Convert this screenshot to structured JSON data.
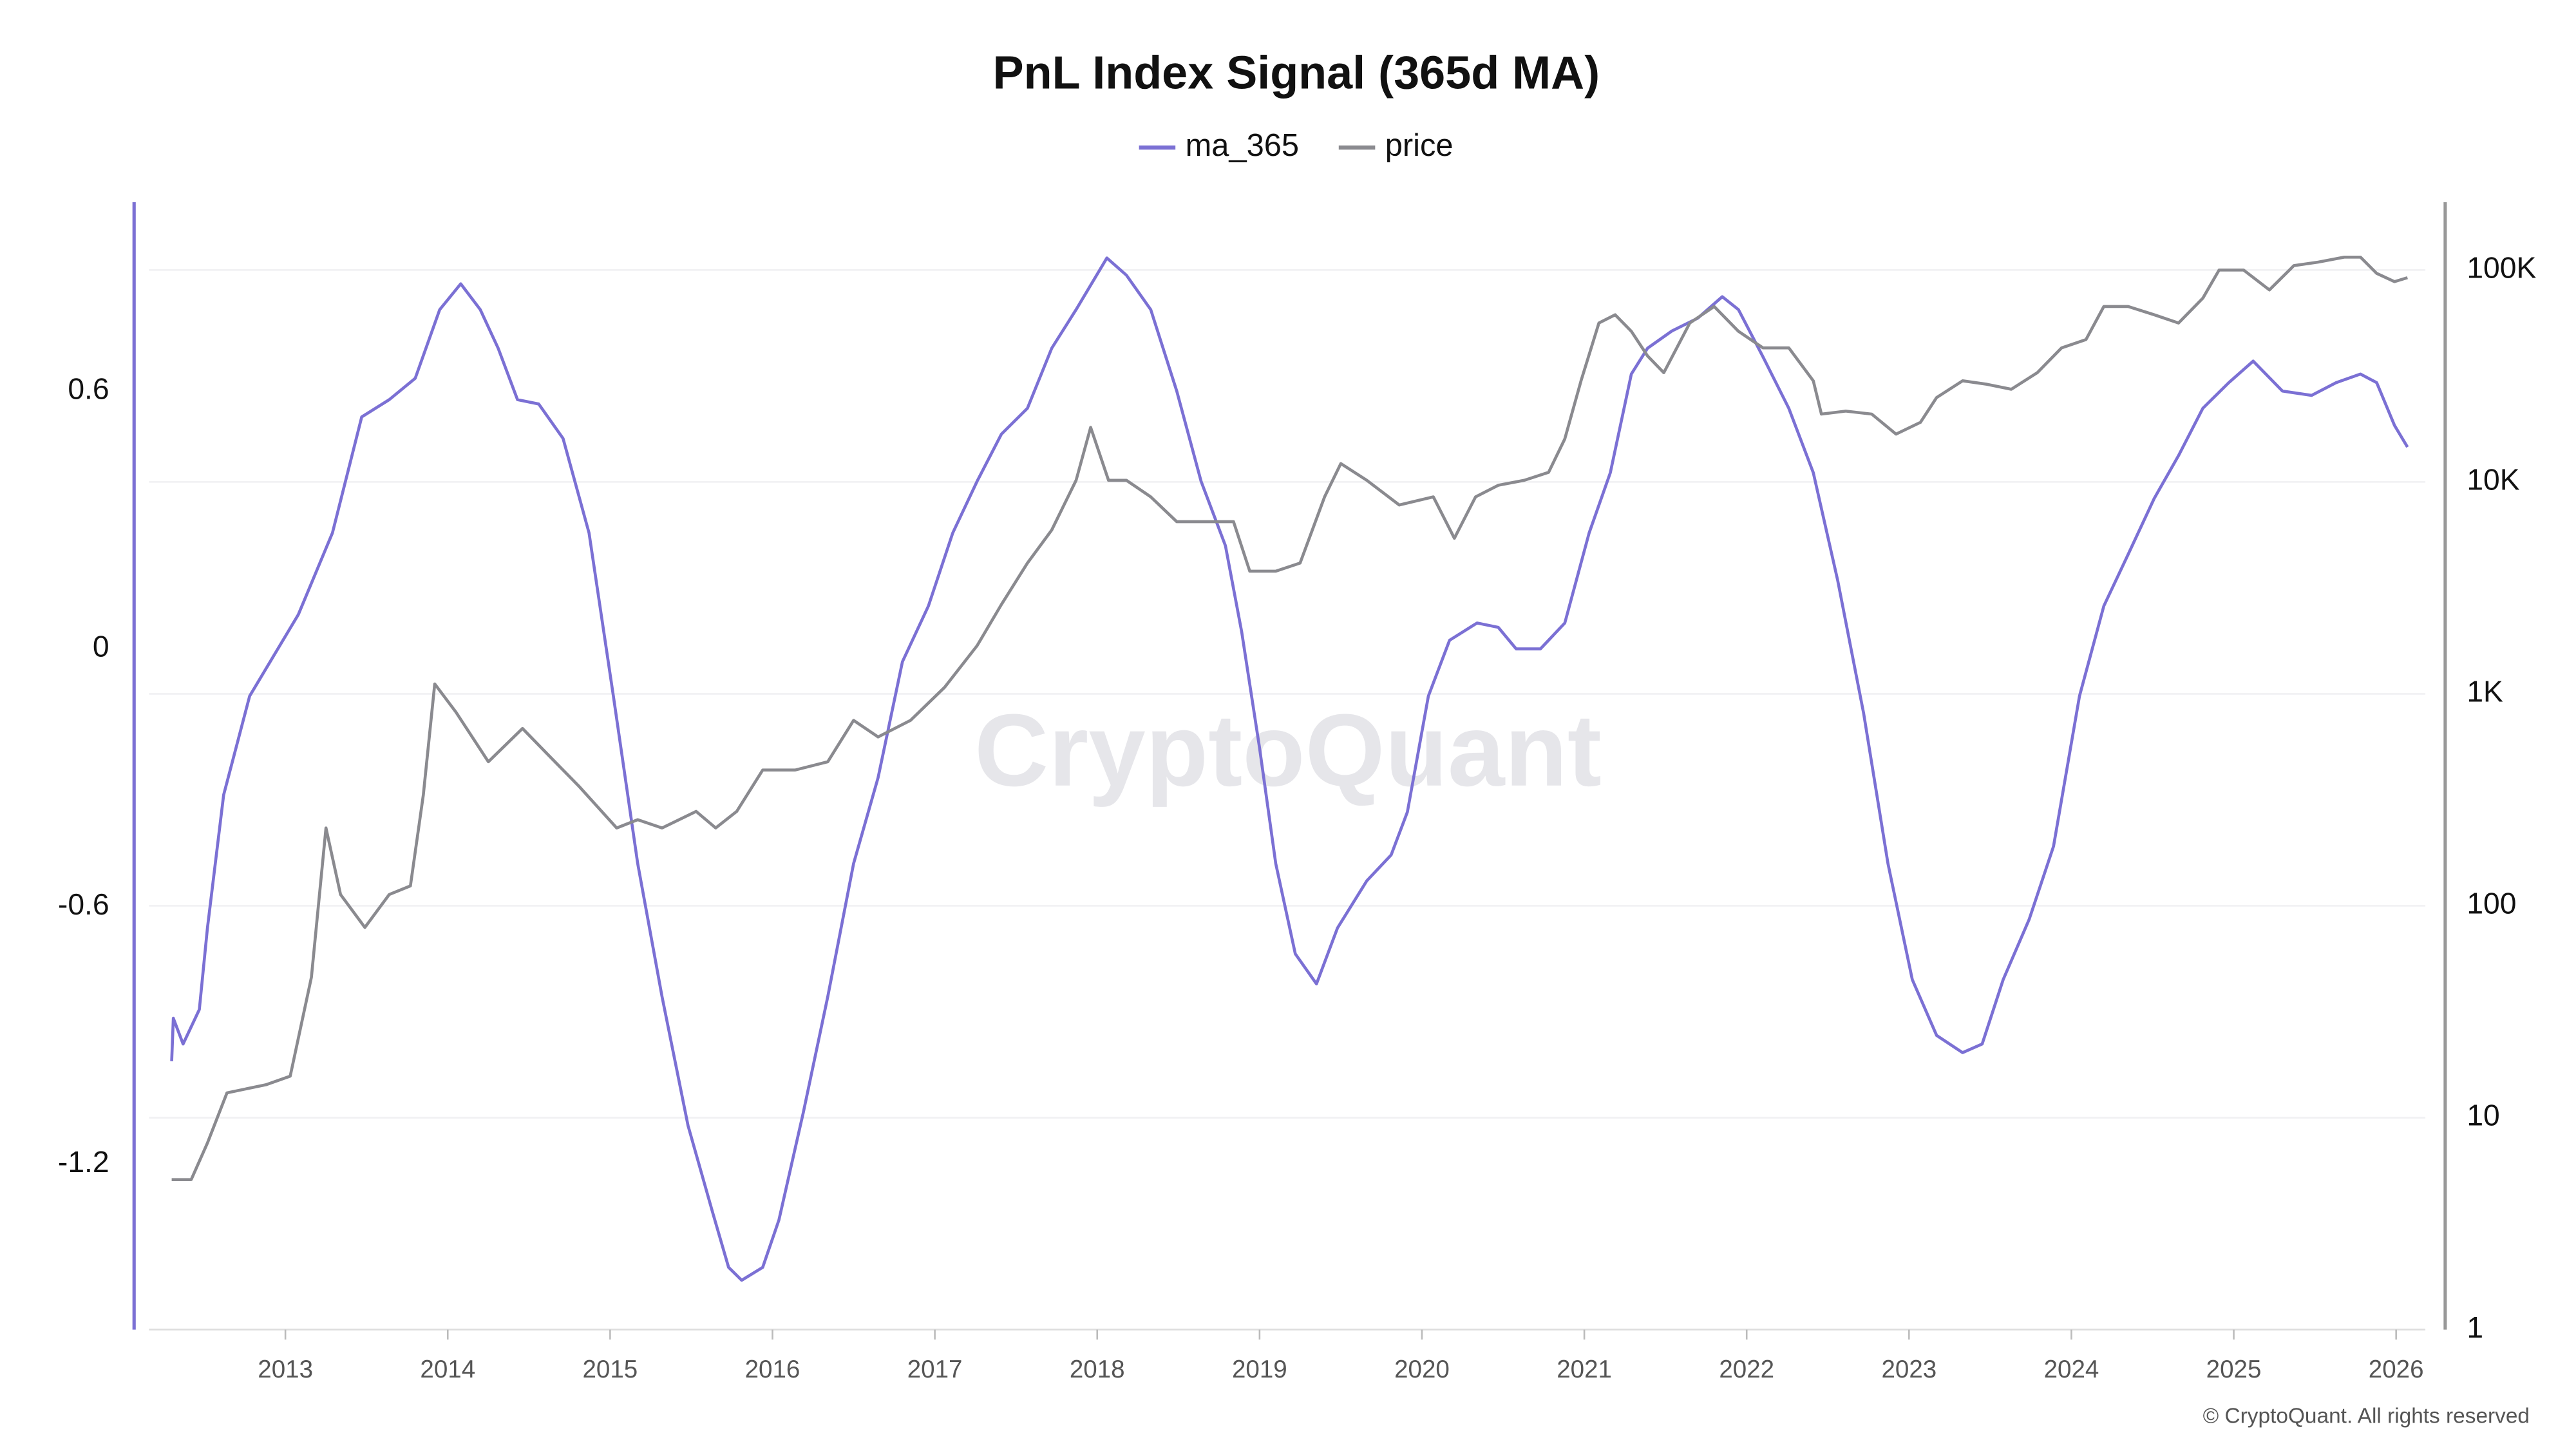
{
  "chart_data": {
    "type": "line",
    "title": "PnL Index Signal (365d MA)",
    "watermark": "CryptoQuant",
    "credit": "© CryptoQuant. All rights reserved",
    "xlim": [
      2012.16,
      2026.18
    ],
    "xticks": [
      2013,
      2014,
      2015,
      2016,
      2017,
      2018,
      2019,
      2020,
      2021,
      2022,
      2023,
      2024,
      2025,
      2026
    ],
    "ylim": [
      -1.585,
      1.04
    ],
    "yticks": [
      -1.2,
      -0.6,
      0,
      0.6
    ],
    "y2lim": [
      1,
      209000
    ],
    "y2ticks": [
      1,
      10,
      100,
      {
        "value": 1000,
        "label": "1K"
      },
      {
        "value": 10000,
        "label": "10K"
      },
      {
        "value": 100000,
        "label": "100K"
      }
    ],
    "y2log": true,
    "grid": true,
    "legend": "top",
    "series": [
      {
        "name": "ma_365",
        "color": "#7b70d4",
        "x": [
          2012.3,
          2012.31,
          2012.37,
          2012.47,
          2012.52,
          2012.62,
          2012.78,
          2012.93,
          2013.08,
          2013.29,
          2013.47,
          2013.64,
          2013.8,
          2013.95,
          2014.08,
          2014.2,
          2014.31,
          2014.43,
          2014.56,
          2014.71,
          2014.87,
          2015.02,
          2015.17,
          2015.32,
          2015.48,
          2015.63,
          2015.73,
          2015.81,
          2015.94,
          2016.04,
          2016.19,
          2016.34,
          2016.5,
          2016.65,
          2016.8,
          2016.96,
          2017.11,
          2017.26,
          2017.41,
          2017.57,
          2017.72,
          2017.87,
          2018.06,
          2018.18,
          2018.33,
          2018.49,
          2018.64,
          2018.79,
          2018.89,
          2019.0,
          2019.1,
          2019.22,
          2019.35,
          2019.48,
          2019.66,
          2019.81,
          2019.91,
          2020.04,
          2020.17,
          2020.34,
          2020.47,
          2020.58,
          2020.73,
          2020.88,
          2021.03,
          2021.16,
          2021.29,
          2021.39,
          2021.54,
          2021.7,
          2021.85,
          2021.95,
          2022.1,
          2022.26,
          2022.41,
          2022.56,
          2022.72,
          2022.87,
          2023.02,
          2023.17,
          2023.33,
          2023.45,
          2023.58,
          2023.74,
          2023.89,
          2024.05,
          2024.2,
          2024.35,
          2024.51,
          2024.66,
          2024.81,
          2024.97,
          2025.12,
          2025.3,
          2025.48,
          2025.63,
          2025.78,
          2025.88,
          2025.99,
          2026.07
        ],
        "values": [
          -0.96,
          -0.86,
          -0.92,
          -0.84,
          -0.65,
          -0.34,
          -0.11,
          -0.015,
          0.08,
          0.27,
          0.54,
          0.58,
          0.63,
          0.79,
          0.85,
          0.79,
          0.7,
          0.58,
          0.57,
          0.49,
          0.27,
          -0.11,
          -0.5,
          -0.81,
          -1.11,
          -1.31,
          -1.44,
          -1.47,
          -1.44,
          -1.33,
          -1.08,
          -0.81,
          -0.5,
          -0.3,
          -0.03,
          0.1,
          0.27,
          0.39,
          0.5,
          0.56,
          0.7,
          0.79,
          0.91,
          0.87,
          0.79,
          0.6,
          0.39,
          0.24,
          0.04,
          -0.23,
          -0.5,
          -0.71,
          -0.78,
          -0.65,
          -0.54,
          -0.48,
          -0.38,
          -0.11,
          0.02,
          0.06,
          0.05,
          0.0,
          0.0,
          0.06,
          0.27,
          0.41,
          0.64,
          0.7,
          0.74,
          0.77,
          0.82,
          0.79,
          0.68,
          0.56,
          0.41,
          0.16,
          -0.15,
          -0.5,
          -0.77,
          -0.9,
          -0.94,
          -0.92,
          -0.77,
          -0.63,
          -0.46,
          -0.11,
          0.1,
          0.22,
          0.35,
          0.45,
          0.56,
          0.62,
          0.67,
          0.6,
          0.59,
          0.62,
          0.64,
          0.62,
          0.52,
          0.47
        ]
      },
      {
        "name": "price",
        "color": "#8a8a8f",
        "axis": "y2",
        "x": [
          2012.3,
          2012.42,
          2012.52,
          2012.64,
          2012.88,
          2013.03,
          2013.16,
          2013.25,
          2013.34,
          2013.49,
          2013.64,
          2013.77,
          2013.85,
          2013.92,
          2014.05,
          2014.25,
          2014.46,
          2014.66,
          2014.81,
          2015.04,
          2015.17,
          2015.32,
          2015.53,
          2015.65,
          2015.78,
          2015.94,
          2016.14,
          2016.34,
          2016.5,
          2016.65,
          2016.85,
          2017.06,
          2017.26,
          2017.41,
          2017.57,
          2017.72,
          2017.87,
          2017.96,
          2018.07,
          2018.18,
          2018.33,
          2018.49,
          2018.69,
          2018.84,
          2018.94,
          2019.1,
          2019.25,
          2019.4,
          2019.5,
          2019.66,
          2019.86,
          2020.07,
          2020.2,
          2020.33,
          2020.47,
          2020.63,
          2020.78,
          2020.88,
          2020.98,
          2021.09,
          2021.19,
          2021.29,
          2021.39,
          2021.49,
          2021.65,
          2021.8,
          2021.95,
          2022.1,
          2022.26,
          2022.41,
          2022.46,
          2022.61,
          2022.77,
          2022.92,
          2023.07,
          2023.17,
          2023.33,
          2023.48,
          2023.63,
          2023.79,
          2023.94,
          2024.09,
          2024.2,
          2024.35,
          2024.51,
          2024.66,
          2024.81,
          2024.91,
          2025.06,
          2025.22,
          2025.37,
          2025.52,
          2025.68,
          2025.78,
          2025.88,
          2025.99,
          2026.07
        ],
        "values": [
          5.1,
          5.1,
          7.6,
          13.1,
          14.3,
          15.7,
          46,
          233,
          113,
          79,
          113,
          124,
          333,
          1114,
          820,
          478,
          686,
          478,
          365,
          233,
          255,
          233,
          279,
          233,
          279,
          437,
          437,
          478,
          750,
          626,
          750,
          1075,
          1686,
          2640,
          4140,
          5930,
          10180,
          18100,
          10180,
          10180,
          8500,
          6490,
          6490,
          6490,
          3790,
          3790,
          4140,
          8500,
          12200,
          10180,
          7780,
          8500,
          5420,
          8500,
          9650,
          10180,
          11100,
          15970,
          30000,
          56200,
          61500,
          51400,
          39300,
          32800,
          56200,
          67300,
          51400,
          42900,
          42900,
          30000,
          20900,
          21600,
          20900,
          16800,
          19100,
          25000,
          30000,
          28900,
          27400,
          32800,
          42900,
          47000,
          67300,
          67300,
          61500,
          56200,
          73600,
          100000,
          100000,
          80600,
          105000,
          109000,
          115000,
          115000,
          96500,
          88100,
          92000
        ]
      }
    ]
  }
}
